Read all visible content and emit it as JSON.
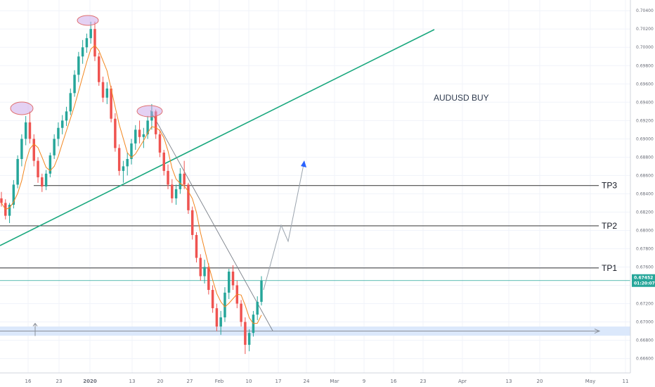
{
  "chart_data": {
    "type": "candlestick",
    "symbol_note": "AUDUSD BUY",
    "colors": {
      "up": "#26a69a",
      "down": "#ef5350",
      "ma": "#f2861f",
      "trendline_green": "#1aa87e",
      "level_line": "#4a4a4a",
      "projection": "#9aa3ad",
      "arrow_head": "#2962ff",
      "zone_fill": "#dbe8fb",
      "price_line": "#26a69a",
      "peak_marker": "#c9a4e8"
    },
    "y_axis": {
      "ticks": [
        "0.70400",
        "0.70200",
        "0.70000",
        "0.69800",
        "0.69600",
        "0.69400",
        "0.69200",
        "0.69000",
        "0.68800",
        "0.68600",
        "0.68400",
        "0.68200",
        "0.68000",
        "0.67800",
        "0.67600",
        "0.67400",
        "0.67200",
        "0.67000",
        "0.66800",
        "0.66600"
      ],
      "range": [
        0.6652,
        0.7044
      ]
    },
    "x_axis": {
      "ticks": [
        "16",
        "23",
        "2020",
        "13",
        "20",
        "27",
        "Feb",
        "10",
        "17",
        "24",
        "Mar",
        "9",
        "16",
        "23",
        "Apr",
        "13",
        "20",
        "May",
        "11"
      ]
    },
    "levels": [
      {
        "label": "TP3",
        "price": 0.6849
      },
      {
        "label": "TP2",
        "price": 0.6805
      },
      {
        "label": "TP1",
        "price": 0.6759
      }
    ],
    "support_zone": {
      "low": 0.6685,
      "high": 0.6695
    },
    "current_price": {
      "value": "0.67452",
      "countdown": "01:20:07"
    },
    "candles": [
      [
        0.6835,
        0.6842,
        0.6826,
        0.683
      ],
      [
        0.683,
        0.6834,
        0.6812,
        0.6816
      ],
      [
        0.6816,
        0.683,
        0.6808,
        0.6828
      ],
      [
        0.6828,
        0.6855,
        0.6824,
        0.685
      ],
      [
        0.685,
        0.6882,
        0.6846,
        0.6878
      ],
      [
        0.6878,
        0.6905,
        0.687,
        0.69
      ],
      [
        0.69,
        0.6925,
        0.6893,
        0.6918
      ],
      [
        0.6918,
        0.693,
        0.6895,
        0.69
      ],
      [
        0.69,
        0.6905,
        0.687,
        0.6876
      ],
      [
        0.6876,
        0.688,
        0.6852,
        0.6858
      ],
      [
        0.6858,
        0.6862,
        0.6842,
        0.6848
      ],
      [
        0.6848,
        0.6866,
        0.6844,
        0.6862
      ],
      [
        0.6862,
        0.6885,
        0.6858,
        0.6882
      ],
      [
        0.6882,
        0.6905,
        0.6878,
        0.69
      ],
      [
        0.69,
        0.6918,
        0.6892,
        0.6912
      ],
      [
        0.6912,
        0.6926,
        0.6905,
        0.692
      ],
      [
        0.692,
        0.6935,
        0.6914,
        0.693
      ],
      [
        0.693,
        0.6955,
        0.6926,
        0.695
      ],
      [
        0.695,
        0.6975,
        0.6946,
        0.697
      ],
      [
        0.697,
        0.6995,
        0.6962,
        0.699
      ],
      [
        0.699,
        0.7008,
        0.6982,
        0.7
      ],
      [
        0.7,
        0.7015,
        0.6994,
        0.701
      ],
      [
        0.701,
        0.7028,
        0.7004,
        0.702
      ],
      [
        0.702,
        0.7028,
        0.6985,
        0.699
      ],
      [
        0.699,
        0.6994,
        0.6958,
        0.6962
      ],
      [
        0.6962,
        0.6968,
        0.694,
        0.6945
      ],
      [
        0.6945,
        0.6962,
        0.6938,
        0.6955
      ],
      [
        0.6955,
        0.6958,
        0.6918,
        0.6922
      ],
      [
        0.6922,
        0.6928,
        0.6886,
        0.689
      ],
      [
        0.689,
        0.6894,
        0.686,
        0.6865
      ],
      [
        0.6865,
        0.6876,
        0.6852,
        0.687
      ],
      [
        0.687,
        0.6885,
        0.686,
        0.6878
      ],
      [
        0.6878,
        0.69,
        0.6872,
        0.6895
      ],
      [
        0.6895,
        0.6915,
        0.6888,
        0.691
      ],
      [
        0.691,
        0.692,
        0.6895,
        0.6902
      ],
      [
        0.6902,
        0.6912,
        0.689,
        0.6905
      ],
      [
        0.6905,
        0.6925,
        0.69,
        0.692
      ],
      [
        0.692,
        0.6938,
        0.691,
        0.693
      ],
      [
        0.693,
        0.6932,
        0.69,
        0.6905
      ],
      [
        0.6905,
        0.691,
        0.688,
        0.6885
      ],
      [
        0.6885,
        0.6888,
        0.686,
        0.6865
      ],
      [
        0.6865,
        0.6872,
        0.6845,
        0.685
      ],
      [
        0.685,
        0.6856,
        0.683,
        0.6835
      ],
      [
        0.6835,
        0.685,
        0.6828,
        0.6845
      ],
      [
        0.6845,
        0.6868,
        0.684,
        0.6862
      ],
      [
        0.6862,
        0.6876,
        0.6845,
        0.685
      ],
      [
        0.685,
        0.6852,
        0.6818,
        0.6822
      ],
      [
        0.6822,
        0.6826,
        0.679,
        0.6795
      ],
      [
        0.6795,
        0.6798,
        0.6765,
        0.677
      ],
      [
        0.677,
        0.6774,
        0.6745,
        0.675
      ],
      [
        0.675,
        0.6768,
        0.6742,
        0.676
      ],
      [
        0.676,
        0.6764,
        0.673,
        0.6735
      ],
      [
        0.6735,
        0.674,
        0.671,
        0.6715
      ],
      [
        0.6715,
        0.672,
        0.669,
        0.6695
      ],
      [
        0.6695,
        0.6712,
        0.6686,
        0.6705
      ],
      [
        0.6705,
        0.6738,
        0.67,
        0.6732
      ],
      [
        0.6732,
        0.6758,
        0.6725,
        0.6755
      ],
      [
        0.6755,
        0.6762,
        0.6735,
        0.674
      ],
      [
        0.674,
        0.6745,
        0.6715,
        0.672
      ],
      [
        0.672,
        0.6724,
        0.6695,
        0.67
      ],
      [
        0.67,
        0.6705,
        0.6665,
        0.6675
      ],
      [
        0.6675,
        0.6692,
        0.6668,
        0.6688
      ],
      [
        0.6688,
        0.6712,
        0.6684,
        0.6708
      ],
      [
        0.6708,
        0.6728,
        0.6702,
        0.6722
      ],
      [
        0.6722,
        0.675,
        0.6718,
        0.6745
      ]
    ]
  }
}
